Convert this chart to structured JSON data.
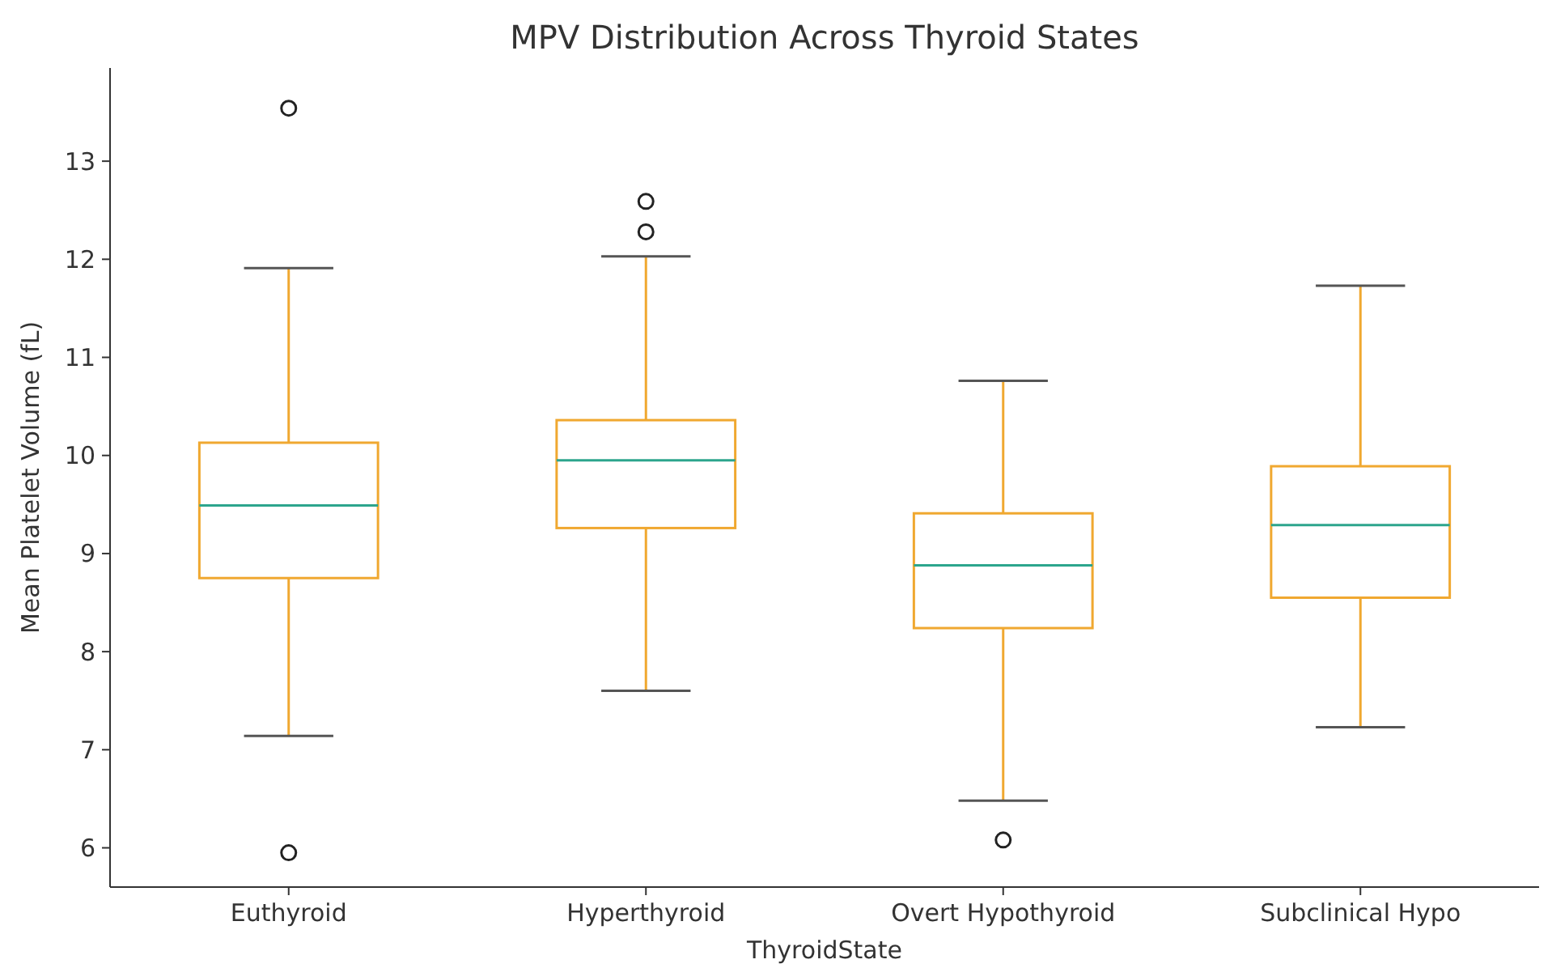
{
  "chart_data": {
    "type": "box",
    "title": "MPV Distribution Across Thyroid States",
    "xlabel": "ThyroidState",
    "ylabel": "Mean Platelet Volume (fL)",
    "categories": [
      "Euthyroid",
      "Hyperthyroid",
      "Overt Hypothyroid",
      "Subclinical Hypo"
    ],
    "color": "#f0a830",
    "boxes": [
      {
        "low": 7.14,
        "q1": 8.75,
        "median": 9.49,
        "q3": 10.13,
        "high": 11.91,
        "outliers": [
          13.54,
          5.95
        ]
      },
      {
        "low": 7.6,
        "q1": 9.26,
        "median": 9.95,
        "q3": 10.36,
        "high": 12.03,
        "outliers": [
          12.59,
          12.28
        ]
      },
      {
        "low": 6.48,
        "q1": 8.24,
        "median": 8.88,
        "q3": 9.41,
        "high": 10.76,
        "outliers": [
          6.08
        ]
      },
      {
        "low": 7.23,
        "q1": 8.55,
        "median": 9.29,
        "q3": 9.89,
        "high": 11.73
      }
    ],
    "ylim": [
      5.6,
      13.95
    ],
    "yticks": [
      6,
      7,
      8,
      9,
      10,
      11,
      12,
      13
    ]
  }
}
